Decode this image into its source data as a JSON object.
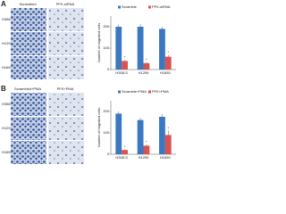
{
  "panels": [
    {
      "letter": "A",
      "columns": [
        "Scrambled",
        "PFK-siRNA"
      ],
      "rows": [
        "H358-S",
        "H1299",
        "H1650"
      ]
    },
    {
      "letter": "B",
      "columns": [
        "Scrambled+PMA",
        "PFK+PMA"
      ],
      "rows": [
        "H358-S",
        "H1299",
        "H1650"
      ]
    }
  ],
  "chart_data": [
    {
      "type": "bar",
      "ylabel": "Number of migrated cells",
      "categories": [
        "H358-S",
        "H1299",
        "H1650"
      ],
      "series": [
        {
          "name": "Scramble",
          "color": "#3a78c2",
          "values": [
            200,
            200,
            190
          ],
          "errors": [
            10,
            12,
            10
          ]
        },
        {
          "name": "PFK-siRNA",
          "color": "#d9534f",
          "values": [
            40,
            30,
            60
          ],
          "errors": [
            6,
            5,
            8
          ]
        }
      ],
      "significance": [
        "*",
        "*",
        "*"
      ],
      "ylim": [
        0,
        250
      ],
      "yticks": [
        0,
        100,
        200
      ],
      "legend": "top"
    },
    {
      "type": "bar",
      "ylabel": "Number of migrated cells",
      "categories": [
        "H358-S",
        "H1299",
        "H1650"
      ],
      "series": [
        {
          "name": "Scramble+PMA",
          "color": "#3a78c2",
          "values": [
            190,
            160,
            175
          ],
          "errors": [
            10,
            10,
            12
          ]
        },
        {
          "name": "PFK+PMA",
          "color": "#d9534f",
          "values": [
            20,
            40,
            90
          ],
          "errors": [
            4,
            6,
            20
          ]
        }
      ],
      "significance": [
        "*",
        "*",
        "*"
      ],
      "ylim": [
        0,
        250
      ],
      "yticks": [
        0,
        100,
        200
      ],
      "legend": "top"
    }
  ]
}
